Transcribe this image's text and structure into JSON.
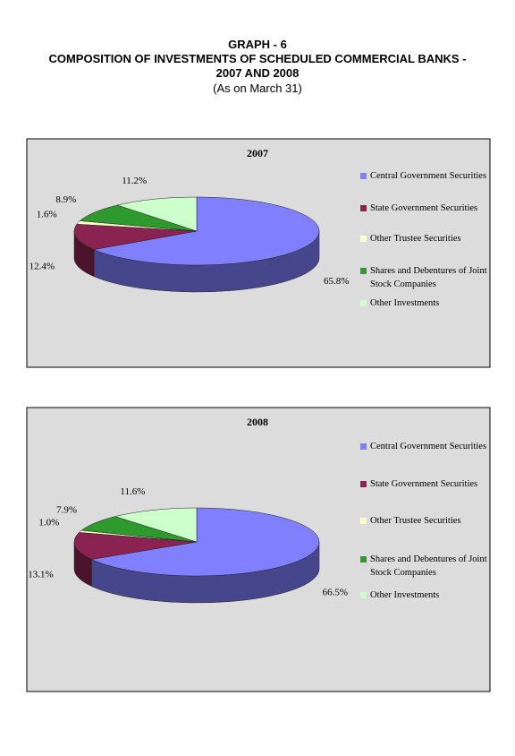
{
  "header": {
    "title": "GRAPH - 6",
    "subtitle_lines": [
      "COMPOSITION OF INVESTMENTS OF SCHEDULED COMMERCIAL BANKS -",
      "2007 AND 2008"
    ],
    "note": "(As on March 31)"
  },
  "chart_data": [
    {
      "type": "pie",
      "title": "2007",
      "categories": [
        "Central Government Securities",
        "State Government Securities",
        "Other Trustee Securities",
        "Shares and Debentures of Joint Stock Companies",
        "Other Investments"
      ],
      "values": [
        65.8,
        12.4,
        1.6,
        8.9,
        11.2
      ],
      "value_labels": [
        "65.8%",
        "12.4%",
        "1.6%",
        "8.9%",
        "11.2%"
      ],
      "colors": [
        "#8080ff",
        "#8a2352",
        "#ffffc8",
        "#2e9a2e",
        "#ccffcc"
      ]
    },
    {
      "type": "pie",
      "title": "2008",
      "categories": [
        "Central Government Securities",
        "State Government Securities",
        "Other Trustee Securities",
        "Shares and Debentures of Joint Stock Companies",
        "Other Investments"
      ],
      "values": [
        66.5,
        13.1,
        1.0,
        7.9,
        11.6
      ],
      "value_labels": [
        "66.5%",
        "13.1%",
        "1.0%",
        "7.9%",
        "11.6%"
      ],
      "colors": [
        "#8080ff",
        "#8a2352",
        "#ffffc8",
        "#2e9a2e",
        "#ccffcc"
      ]
    }
  ]
}
